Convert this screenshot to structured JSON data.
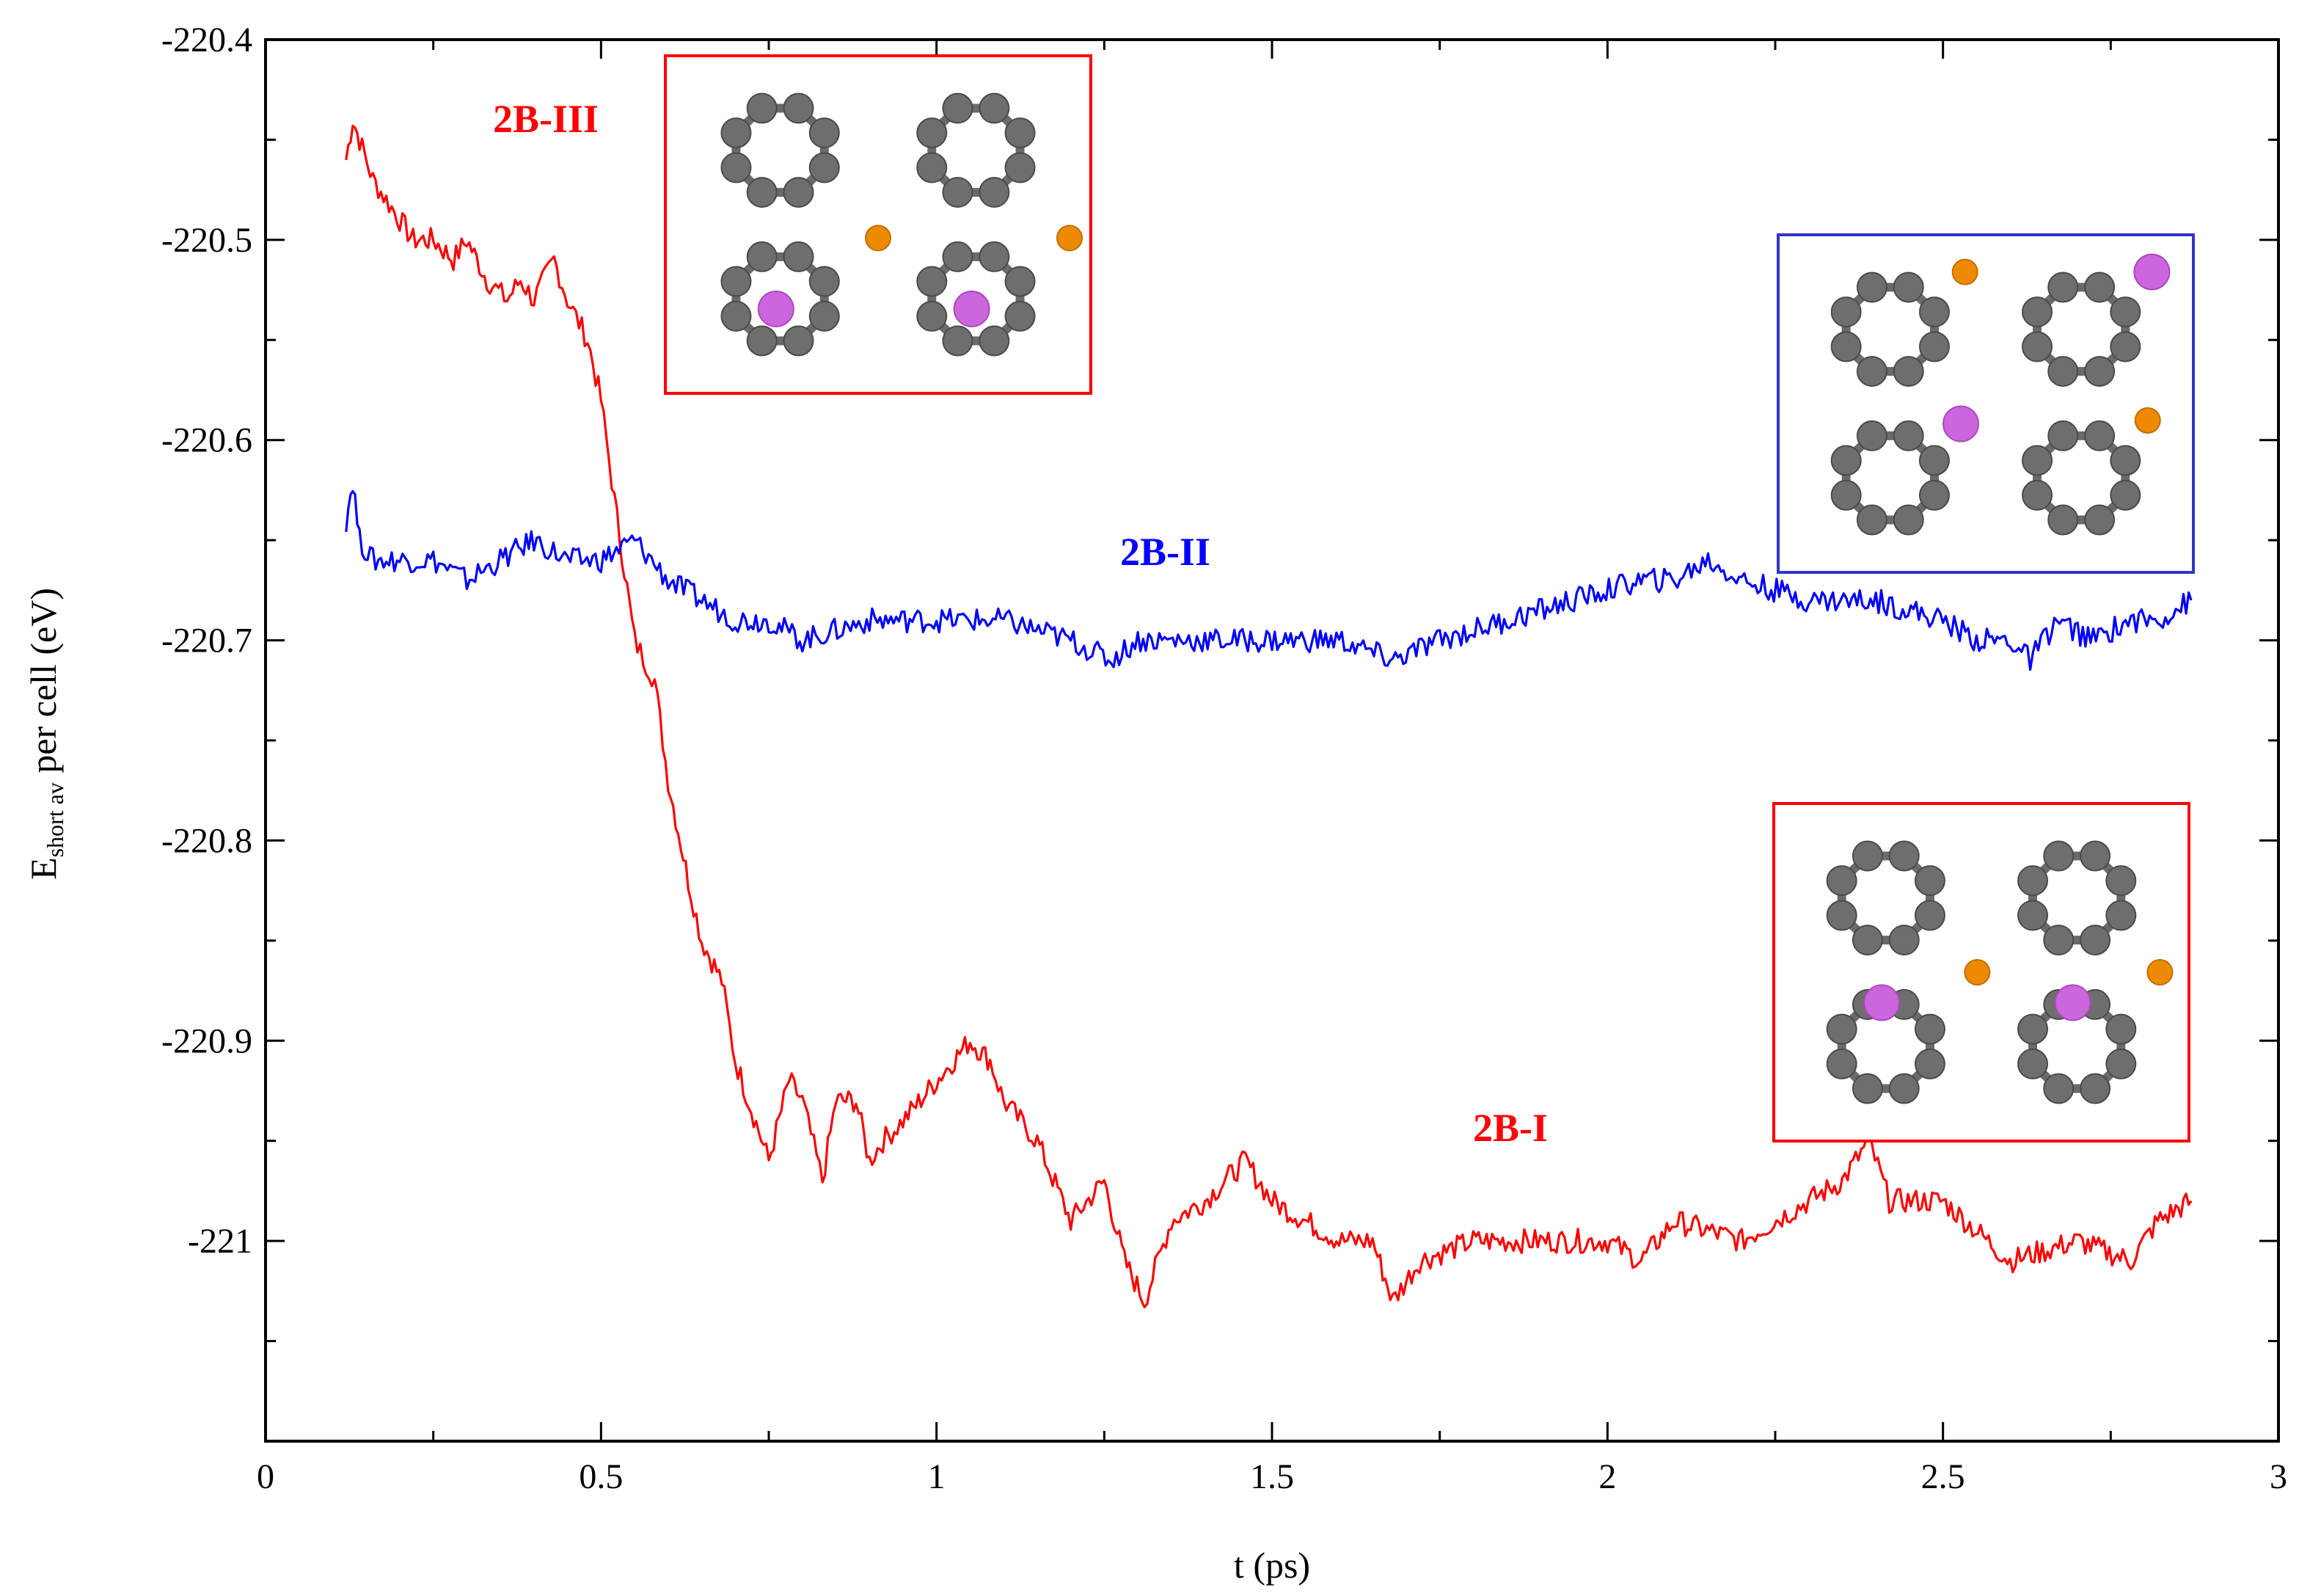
{
  "chart_data": {
    "type": "line",
    "title": "",
    "xlabel": "t  (ps)",
    "ylabel": {
      "main": "E",
      "subscript": "short av",
      "rest": " per cell  (eV)"
    },
    "xlim": [
      0,
      3
    ],
    "ylim": [
      -221.1,
      -220.4
    ],
    "x_ticks": [
      0,
      0.5,
      1,
      1.5,
      2,
      2.5,
      3
    ],
    "x_tick_labels": [
      "0",
      "0.5",
      "1",
      "1.5",
      "2",
      "2.5",
      "3"
    ],
    "y_ticks": [
      -220.4,
      -220.5,
      -220.6,
      -220.7,
      -220.8,
      -220.9,
      -221
    ],
    "y_tick_labels": [
      "-220.4",
      "-220.5",
      "-220.6",
      "-220.7",
      "-220.8",
      "-220.9",
      "-221"
    ],
    "grid": false,
    "series": [
      {
        "name": "2B-III",
        "color": "#ff0000",
        "x": [
          0.12,
          0.13,
          0.14,
          0.16,
          0.18,
          0.2,
          0.22,
          0.25,
          0.28,
          0.3,
          0.33,
          0.36,
          0.38,
          0.4,
          0.43,
          0.45,
          0.48,
          0.5,
          0.52,
          0.55,
          0.58,
          0.6,
          0.63,
          0.65,
          0.68,
          0.7,
          0.72,
          0.75,
          0.78,
          0.8,
          0.83,
          0.85,
          0.88,
          0.9,
          0.92,
          0.95,
          1.0,
          1.05,
          1.08,
          1.1,
          1.15,
          1.2,
          1.25,
          1.28,
          1.31,
          1.35,
          1.4,
          1.46,
          1.5,
          1.55,
          1.6,
          1.65,
          1.68,
          1.72,
          1.8,
          1.9,
          2.0,
          2.05,
          2.1,
          2.2,
          2.3,
          2.35,
          2.39,
          2.42,
          2.5,
          2.6,
          2.7,
          2.78,
          2.82,
          2.87
        ],
        "y": [
          -220.46,
          -220.44,
          -220.45,
          -220.47,
          -220.48,
          -220.49,
          -220.5,
          -220.5,
          -220.51,
          -220.5,
          -220.52,
          -220.53,
          -220.52,
          -220.53,
          -220.51,
          -220.53,
          -220.55,
          -220.58,
          -220.63,
          -220.7,
          -220.72,
          -220.77,
          -220.82,
          -220.85,
          -220.87,
          -220.91,
          -220.93,
          -220.96,
          -220.92,
          -220.93,
          -220.97,
          -220.93,
          -220.93,
          -220.96,
          -220.95,
          -220.94,
          -220.92,
          -220.9,
          -220.91,
          -220.93,
          -220.95,
          -220.99,
          -220.97,
          -221.01,
          -221.03,
          -220.99,
          -220.98,
          -220.96,
          -220.98,
          -220.99,
          -221.0,
          -221.0,
          -221.03,
          -221.01,
          -221.0,
          -221.0,
          -221.0,
          -221.01,
          -220.99,
          -221.0,
          -220.98,
          -220.97,
          -220.95,
          -220.98,
          -220.98,
          -221.01,
          -221.0,
          -221.01,
          -220.99,
          -220.98
        ]
      },
      {
        "name": "2B-II",
        "color": "#0000ff",
        "x": [
          0.12,
          0.13,
          0.14,
          0.16,
          0.2,
          0.25,
          0.3,
          0.35,
          0.4,
          0.45,
          0.5,
          0.55,
          0.6,
          0.65,
          0.7,
          0.75,
          0.8,
          0.9,
          1.0,
          1.1,
          1.2,
          1.26,
          1.3,
          1.4,
          1.5,
          1.6,
          1.68,
          1.75,
          1.85,
          1.95,
          2.05,
          2.1,
          2.15,
          2.2,
          2.3,
          2.4,
          2.5,
          2.55,
          2.6,
          2.63,
          2.67,
          2.72,
          2.78,
          2.82,
          2.87
        ],
        "y": [
          -220.64,
          -220.62,
          -220.65,
          -220.66,
          -220.66,
          -220.66,
          -220.67,
          -220.66,
          -220.65,
          -220.66,
          -220.66,
          -220.65,
          -220.67,
          -220.68,
          -220.69,
          -220.69,
          -220.7,
          -220.69,
          -220.69,
          -220.69,
          -220.7,
          -220.71,
          -220.7,
          -220.7,
          -220.7,
          -220.7,
          -220.71,
          -220.7,
          -220.69,
          -220.68,
          -220.67,
          -220.67,
          -220.66,
          -220.67,
          -220.68,
          -220.68,
          -220.69,
          -220.7,
          -220.7,
          -220.71,
          -220.69,
          -220.7,
          -220.69,
          -220.69,
          -220.68
        ]
      }
    ],
    "annotations": [
      {
        "text": "2B-III",
        "color": "#ff0000"
      },
      {
        "text": "2B-II",
        "color": "#0000ff"
      },
      {
        "text": "2B-I",
        "color": "#ff0000"
      }
    ]
  }
}
